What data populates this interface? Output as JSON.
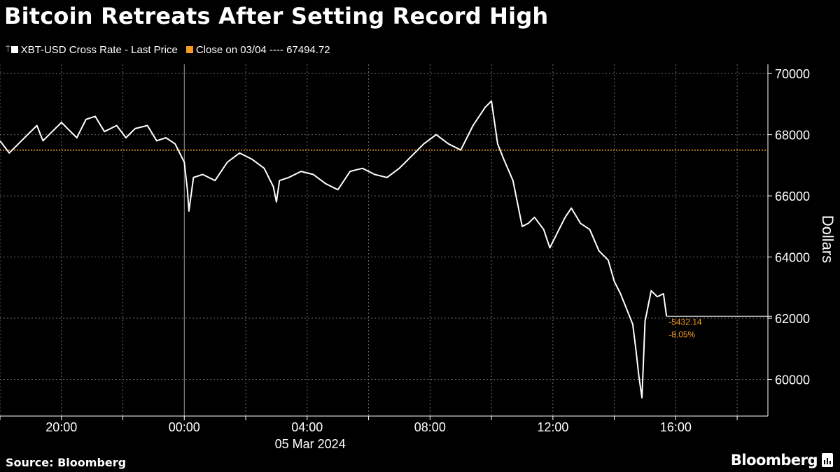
{
  "title": "Bitcoin Retreats After Setting Record High",
  "legend": [
    {
      "label": "XBT-USD Cross Rate - Last Price",
      "color": "#ffffff"
    },
    {
      "label": "Close on 03/04 ---- 67494.72",
      "color": "#f59a23"
    }
  ],
  "source": "Source: Bloomberg",
  "brand": "Bloomberg",
  "chart_data": {
    "type": "line",
    "xlabel": "05 Mar 2024",
    "ylabel": "Dollars",
    "x_ticks": [
      "20:00",
      "00:00",
      "04:00",
      "08:00",
      "12:00",
      "16:00"
    ],
    "y_ticks": [
      60000,
      62000,
      64000,
      66000,
      68000,
      70000
    ],
    "ylim": [
      58800,
      70300
    ],
    "xlim_hours": [
      -6,
      19
    ],
    "grid": true,
    "reference_line": {
      "name": "Close on 03/04",
      "value": 67494.72,
      "color": "#f59a23"
    },
    "last_change": {
      "value": "-5432.14",
      "percent": "-8.05%"
    },
    "series": [
      {
        "name": "XBT-USD Cross Rate - Last Price",
        "color": "#ffffff",
        "x": [
          -6.0,
          -5.7,
          -5.4,
          -5.1,
          -4.8,
          -4.6,
          -4.3,
          -4.0,
          -3.8,
          -3.5,
          -3.2,
          -2.9,
          -2.6,
          -2.2,
          -1.9,
          -1.6,
          -1.2,
          -0.9,
          -0.6,
          -0.3,
          0.0,
          0.1,
          0.15,
          0.3,
          0.6,
          1.0,
          1.4,
          1.8,
          2.2,
          2.6,
          2.9,
          3.0,
          3.1,
          3.4,
          3.8,
          4.2,
          4.6,
          5.0,
          5.4,
          5.8,
          6.2,
          6.6,
          7.0,
          7.4,
          7.8,
          8.2,
          8.6,
          9.0,
          9.4,
          9.8,
          10.0,
          10.2,
          10.4,
          10.7,
          11.0,
          11.2,
          11.4,
          11.7,
          11.9,
          12.0,
          12.2,
          12.4,
          12.6,
          12.9,
          13.2,
          13.5,
          13.8,
          14.0,
          14.2,
          14.4,
          14.6,
          14.7,
          14.8,
          14.9,
          15.0,
          15.1,
          15.2,
          15.4,
          15.6,
          15.7
        ],
        "y": [
          67800,
          67400,
          67700,
          68000,
          68300,
          67800,
          68100,
          68400,
          68200,
          67900,
          68500,
          68600,
          68100,
          68300,
          67900,
          68200,
          68300,
          67800,
          67900,
          67700,
          67100,
          66200,
          65500,
          66600,
          66700,
          66500,
          67100,
          67400,
          67200,
          66900,
          66300,
          65800,
          66500,
          66600,
          66800,
          66700,
          66400,
          66200,
          66800,
          66900,
          66700,
          66600,
          66900,
          67300,
          67700,
          68000,
          67700,
          67500,
          68300,
          68900,
          69100,
          67700,
          67200,
          66500,
          65000,
          65100,
          65300,
          64900,
          64300,
          64500,
          64900,
          65300,
          65600,
          65100,
          64900,
          64200,
          63900,
          63200,
          62800,
          62300,
          61800,
          61000,
          60100,
          59400,
          61900,
          62400,
          62900,
          62700,
          62800,
          62062.58
        ]
      }
    ]
  }
}
